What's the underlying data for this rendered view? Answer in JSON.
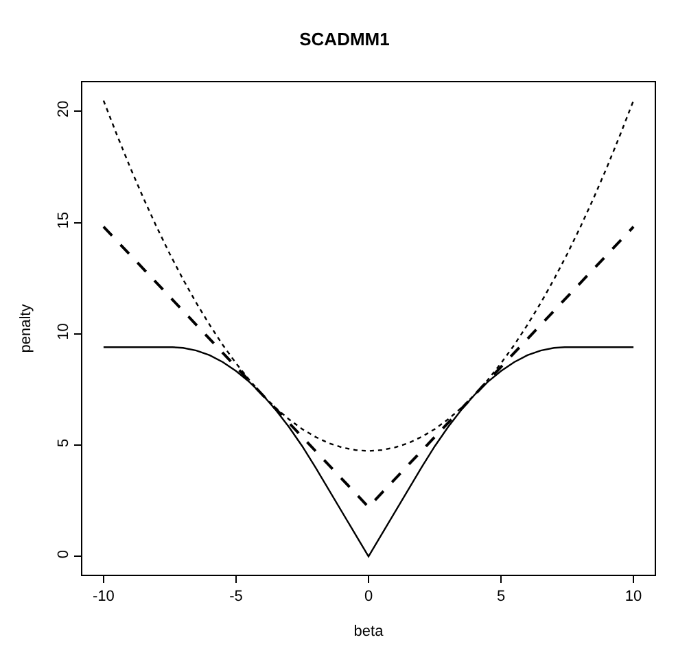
{
  "chart_data": {
    "type": "line",
    "title": "SCADMM1",
    "xlabel": "beta",
    "ylabel": "penalty",
    "xlim": [
      -10.8,
      10.8
    ],
    "ylim": [
      -0.82,
      21.3
    ],
    "xticks": [
      -10,
      -5,
      0,
      5,
      10
    ],
    "yticks": [
      0,
      5,
      10,
      15,
      20
    ],
    "marker": "none",
    "series": [
      {
        "color": "#000000",
        "line_style": "solid",
        "x": [
          -10,
          -7.4,
          -7,
          -6.5,
          -6,
          -5.5,
          -5,
          -4.5,
          -4,
          -3.5,
          -3,
          -2.5,
          -2,
          0,
          2,
          2.5,
          3,
          3.5,
          4,
          4.5,
          5,
          5.5,
          6,
          6.5,
          7,
          7.4,
          10
        ],
        "values": [
          9.4,
          9.4,
          9.37,
          9.25,
          9.04,
          8.73,
          8.33,
          7.84,
          7.26,
          6.58,
          5.81,
          4.95,
          4.0,
          0.0,
          4.0,
          4.95,
          5.81,
          6.58,
          7.26,
          7.84,
          8.33,
          8.73,
          9.04,
          9.25,
          9.37,
          9.4,
          9.4
        ]
      },
      {
        "color": "#000000",
        "line_style": "dashed",
        "x": [
          -10,
          0,
          10
        ],
        "values": [
          14.81,
          2.22,
          14.81
        ]
      },
      {
        "color": "#000000",
        "line_style": "dotted",
        "x": [
          -10,
          -9.5,
          -9,
          -8.5,
          -8,
          -7.5,
          -7,
          -6.5,
          -6,
          -5.5,
          -5,
          -4.5,
          -4,
          -3.5,
          -3,
          -2.5,
          -2,
          -1.5,
          -1,
          -0.5,
          0,
          0.5,
          1,
          1.5,
          2,
          2.5,
          3,
          3.5,
          4,
          4.5,
          5,
          5.5,
          6,
          6.5,
          7,
          7.5,
          8,
          8.5,
          9,
          9.5,
          10
        ],
        "values": [
          20.48,
          18.95,
          17.49,
          16.11,
          14.81,
          13.59,
          12.45,
          11.39,
          10.41,
          9.5,
          8.68,
          7.93,
          7.26,
          6.67,
          6.16,
          5.72,
          5.37,
          5.09,
          4.9,
          4.78,
          4.74,
          4.78,
          4.9,
          5.09,
          5.37,
          5.72,
          6.16,
          6.67,
          7.26,
          7.93,
          8.68,
          9.5,
          10.41,
          11.39,
          12.45,
          13.59,
          14.81,
          16.11,
          17.49,
          18.95,
          20.48
        ]
      }
    ]
  }
}
